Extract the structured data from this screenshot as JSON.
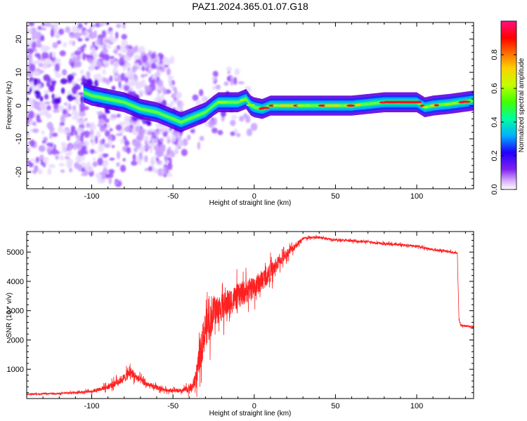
{
  "title": "PAZ1.2024.365.01.07.G18",
  "chart_data": [
    {
      "type": "heatmap",
      "xlabel": "Height of straight line (km)",
      "ylabel": "Frequency (Hz)",
      "xlim": [
        -140,
        135
      ],
      "ylim": [
        -25,
        25
      ],
      "x_ticks": [
        -100,
        -50,
        0,
        50,
        100
      ],
      "y_ticks": [
        -20,
        -10,
        0,
        10,
        20
      ],
      "colorbar": {
        "label": "Normalized spectral amplitude",
        "range": [
          0,
          1
        ],
        "ticks": [
          0.0,
          0.2,
          0.4,
          0.6,
          0.8
        ],
        "colormap": [
          "#ffffff",
          "#c080ff",
          "#6000e0",
          "#0020ff",
          "#00c0ff",
          "#00ff80",
          "#80ff00",
          "#ffff00",
          "#ff8000",
          "#ff0000",
          "#ff0080"
        ]
      },
      "ridge": {
        "x": [
          -110,
          -100,
          -90,
          -80,
          -70,
          -60,
          -50,
          -45,
          -40,
          -35,
          -30,
          -25,
          -22,
          -15,
          -10,
          -5,
          -2,
          0,
          5,
          10,
          20,
          40,
          60,
          80,
          100,
          105,
          110,
          120,
          135
        ],
        "y": [
          5,
          3,
          2,
          1,
          -1,
          -2,
          -4,
          -5,
          -4,
          -3,
          -2,
          0,
          1,
          1,
          1,
          2,
          0,
          -0.5,
          -1,
          0,
          0,
          0,
          0,
          1,
          1,
          -0.5,
          0,
          0.5,
          1.5
        ]
      }
    },
    {
      "type": "line",
      "xlabel": "Height of straight line (km)",
      "ylabel": "SNR (10 * v/v)",
      "xlim": [
        -140,
        135
      ],
      "ylim": [
        0,
        5700
      ],
      "x_ticks": [
        -100,
        -50,
        0,
        50,
        100
      ],
      "y_ticks": [
        1000,
        2000,
        3000,
        4000,
        5000
      ],
      "series": [
        {
          "color": "#ff2020",
          "x": [
            -140,
            -120,
            -100,
            -90,
            -85,
            -80,
            -76,
            -72,
            -65,
            -55,
            -45,
            -38,
            -35,
            -33,
            -30,
            -27,
            -25,
            -20,
            -15,
            -10,
            -5,
            0,
            5,
            10,
            15,
            20,
            25,
            30,
            35,
            40,
            50,
            60,
            70,
            80,
            90,
            100,
            110,
            120,
            125,
            126,
            127,
            130,
            135
          ],
          "values": [
            150,
            170,
            250,
            400,
            550,
            700,
            900,
            700,
            450,
            300,
            250,
            400,
            900,
            1600,
            2400,
            2600,
            3000,
            3100,
            3300,
            3500,
            3650,
            3800,
            4050,
            4300,
            4650,
            4950,
            5200,
            5450,
            5500,
            5500,
            5420,
            5380,
            5350,
            5280,
            5250,
            5200,
            5080,
            5020,
            4950,
            2700,
            2500,
            2480,
            2450
          ],
          "noise": [
            60,
            60,
            120,
            200,
            280,
            330,
            380,
            300,
            220,
            150,
            150,
            350,
            900,
            1300,
            1400,
            1300,
            1200,
            1050,
            1000,
            950,
            900,
            850,
            800,
            700,
            500,
            350,
            250,
            150,
            100,
            100,
            90,
            90,
            90,
            90,
            90,
            90,
            90,
            90,
            90,
            80,
            80,
            80,
            80
          ]
        }
      ]
    }
  ]
}
